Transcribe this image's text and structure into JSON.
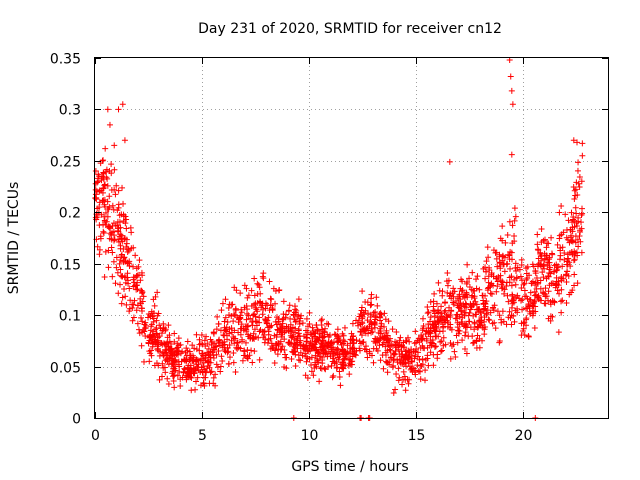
{
  "chart_data": {
    "type": "scatter",
    "title": "Day 231 of 2020, SRMTID for receiver cn12",
    "xlabel": "GPS time / hours",
    "ylabel": "SRMTID / TECUs",
    "xlim": [
      0,
      24
    ],
    "ylim": [
      0,
      0.35
    ],
    "xticks": [
      0,
      5,
      10,
      15,
      20
    ],
    "yticks": [
      0,
      0.05,
      0.1,
      0.15,
      0.2,
      0.25,
      0.3,
      0.35
    ],
    "xtick_labels": [
      "0",
      "5",
      "10",
      "15",
      "20"
    ],
    "ytick_labels": [
      "0",
      "0.05",
      "0.1",
      "0.15",
      "0.2",
      "0.25",
      "0.3",
      "0.35"
    ],
    "grid": true,
    "marker": "plus",
    "color": "#ff0000",
    "trend_x": [
      0,
      0.5,
      1.0,
      1.5,
      2.0,
      2.5,
      3.0,
      3.5,
      4.0,
      4.5,
      5.0,
      5.5,
      6.0,
      6.5,
      7.0,
      7.5,
      8.0,
      8.5,
      9.0,
      9.5,
      10.0,
      10.5,
      11.0,
      11.5,
      12.0,
      12.5,
      13.0,
      13.5,
      14.0,
      14.5,
      15.0,
      15.5,
      16.0,
      16.5,
      17.0,
      17.5,
      18.0,
      18.5,
      19.0,
      19.5,
      20.0,
      20.5,
      21.0,
      21.5,
      22.0,
      22.5,
      22.8
    ],
    "trend_y": [
      0.2,
      0.21,
      0.18,
      0.16,
      0.12,
      0.09,
      0.075,
      0.06,
      0.055,
      0.05,
      0.055,
      0.065,
      0.075,
      0.085,
      0.09,
      0.1,
      0.1,
      0.09,
      0.085,
      0.08,
      0.07,
      0.07,
      0.065,
      0.06,
      0.07,
      0.085,
      0.09,
      0.075,
      0.065,
      0.055,
      0.06,
      0.075,
      0.09,
      0.1,
      0.1,
      0.11,
      0.105,
      0.12,
      0.13,
      0.14,
      0.12,
      0.12,
      0.15,
      0.13,
      0.16,
      0.18,
      0.2
    ],
    "spread_y": [
      0.04,
      0.05,
      0.05,
      0.05,
      0.04,
      0.035,
      0.03,
      0.025,
      0.02,
      0.02,
      0.025,
      0.03,
      0.03,
      0.035,
      0.035,
      0.035,
      0.035,
      0.03,
      0.03,
      0.025,
      0.025,
      0.025,
      0.02,
      0.02,
      0.025,
      0.03,
      0.03,
      0.025,
      0.025,
      0.02,
      0.02,
      0.03,
      0.035,
      0.035,
      0.035,
      0.035,
      0.035,
      0.04,
      0.045,
      0.05,
      0.04,
      0.04,
      0.045,
      0.045,
      0.05,
      0.05,
      0.05
    ],
    "point_count": 2200,
    "outliers": [
      {
        "x": 0.2,
        "y": 0.22
      },
      {
        "x": 0.35,
        "y": 0.25
      },
      {
        "x": 0.6,
        "y": 0.3
      },
      {
        "x": 0.7,
        "y": 0.285
      },
      {
        "x": 1.1,
        "y": 0.3
      },
      {
        "x": 1.3,
        "y": 0.305
      },
      {
        "x": 1.4,
        "y": 0.27
      },
      {
        "x": 0.9,
        "y": 0.265
      },
      {
        "x": 16.6,
        "y": 0.249
      },
      {
        "x": 19.4,
        "y": 0.348
      },
      {
        "x": 19.45,
        "y": 0.332
      },
      {
        "x": 19.5,
        "y": 0.318
      },
      {
        "x": 19.55,
        "y": 0.305
      },
      {
        "x": 19.5,
        "y": 0.256
      },
      {
        "x": 22.4,
        "y": 0.27
      },
      {
        "x": 22.55,
        "y": 0.268
      },
      {
        "x": 22.8,
        "y": 0.267
      },
      {
        "x": 22.8,
        "y": 0.255
      },
      {
        "x": 9.3,
        "y": 0.0
      },
      {
        "x": 12.4,
        "y": 0.0
      },
      {
        "x": 12.45,
        "y": 0.0
      },
      {
        "x": 12.8,
        "y": 0.0
      },
      {
        "x": 12.85,
        "y": 0.0
      },
      {
        "x": 20.6,
        "y": 0.0
      }
    ]
  }
}
